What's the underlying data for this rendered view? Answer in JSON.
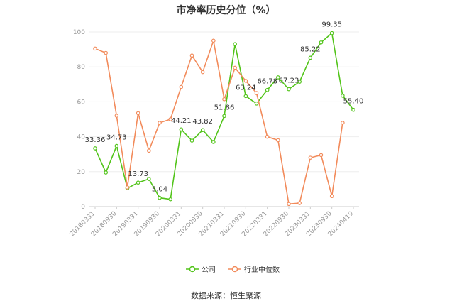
{
  "title": "市净率历史分位（%）",
  "source": "数据来源：恒生聚源",
  "chart_data": {
    "type": "line",
    "categories": [
      "20180331",
      "",
      "20180930",
      "",
      "20190331",
      "",
      "20190930",
      "",
      "20200331",
      "",
      "20200930",
      "",
      "20210331",
      "",
      "20210930",
      "",
      "20220331",
      "",
      "20220930",
      "",
      "20230331",
      "",
      "20230930",
      "",
      "20240419"
    ],
    "x_tick_labels": [
      "20180331",
      "20180930",
      "20190331",
      "20190930",
      "20200331",
      "20200930",
      "20210331",
      "20210930",
      "20220331",
      "20220930",
      "20230331",
      "20230930",
      "20240419"
    ],
    "ylim": [
      0,
      100
    ],
    "yticks": [
      0,
      20,
      40,
      60,
      80,
      100
    ],
    "grid": true,
    "legend_position": "bottom",
    "series": [
      {
        "name": "公司",
        "color": "#52c41a",
        "values": [
          33.36,
          19.5,
          34.73,
          10.5,
          13.73,
          15.8,
          5.04,
          4.2,
          44.21,
          37.8,
          43.82,
          37.0,
          51.86,
          93.0,
          63.24,
          59.0,
          66.78,
          74.0,
          67.23,
          71.5,
          85.22,
          94.0,
          99.35,
          63.5,
          55.4
        ],
        "labels": [
          "33.36",
          "",
          "34.73",
          "",
          "13.73",
          "",
          "5.04",
          "",
          "44.21",
          "",
          "43.82",
          "",
          "51.86",
          "",
          "63.24",
          "",
          "66.78",
          "",
          "67.23",
          "",
          "85.22",
          "",
          "99.35",
          "",
          "55.40"
        ]
      },
      {
        "name": "行业中位数",
        "color": "#f28b5b",
        "values": [
          90.5,
          88.0,
          52.0,
          11.0,
          53.5,
          32.0,
          48.0,
          50.0,
          68.5,
          86.5,
          77.0,
          95.0,
          61.5,
          79.5,
          72.0,
          65.0,
          40.0,
          38.0,
          1.5,
          2.0,
          28.0,
          29.5,
          6.0,
          48.0,
          null
        ]
      }
    ]
  }
}
